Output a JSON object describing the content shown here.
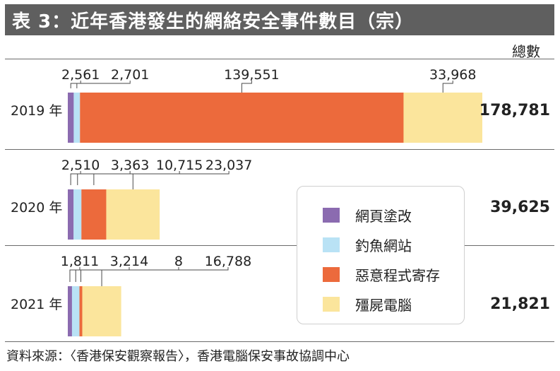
{
  "title": "表 3：近年香港發生的網絡安全事件數目（宗）",
  "total_header": "總數",
  "source": "資料來源：〈香港保安觀察報告〉，香港電腦保安事故協調中心",
  "colors": {
    "title_bg": "#5f5f5f",
    "defacement": "#8b6bb0",
    "phishing": "#b9e2f5",
    "malware": "#ec6a3c",
    "botnet": "#fbe59c"
  },
  "chart_data": {
    "type": "bar",
    "orientation": "horizontal",
    "stacked": true,
    "title": "表 3：近年香港發生的網絡安全事件數目（宗）",
    "categories": [
      "2019 年",
      "2020 年",
      "2021 年"
    ],
    "series": [
      {
        "name": "網頁塗改",
        "color": "#8b6bb0",
        "values": [
          2561,
          2510,
          1811
        ]
      },
      {
        "name": "釣魚網站",
        "color": "#b9e2f5",
        "values": [
          2701,
          3363,
          3214
        ]
      },
      {
        "name": "惡意程式寄存",
        "color": "#ec6a3c",
        "values": [
          139551,
          10715,
          8
        ]
      },
      {
        "name": "殭屍電腦",
        "color": "#fbe59c",
        "values": [
          33968,
          23037,
          16788
        ]
      }
    ],
    "value_labels": [
      [
        "2,561",
        "2,701",
        "139,551",
        "33,968"
      ],
      [
        "2,510",
        "3,363",
        "10,715",
        "23,037"
      ],
      [
        "1,811",
        "3,214",
        "8",
        "16,788"
      ]
    ],
    "totals": [
      178781,
      39625,
      21821
    ],
    "total_labels": [
      "178,781",
      "39,625",
      "21,821"
    ],
    "xlim": [
      0,
      178781
    ],
    "legend": "inside-right"
  }
}
